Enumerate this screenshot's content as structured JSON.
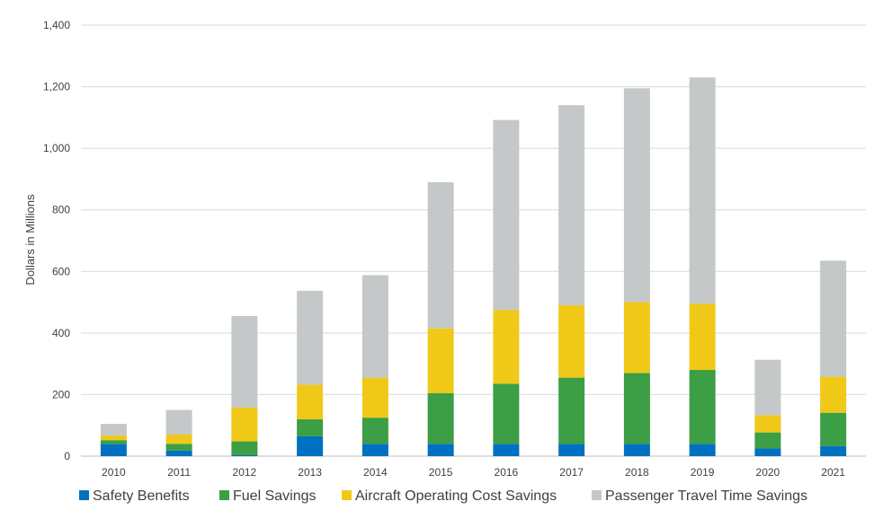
{
  "chart_data": {
    "type": "bar",
    "stacked": true,
    "title": "",
    "xlabel": "",
    "ylabel": "Dollars in Millions",
    "ylim": [
      0,
      1400
    ],
    "yticks": [
      0,
      200,
      400,
      600,
      800,
      1000,
      1200,
      1400
    ],
    "ytick_labels": [
      "0",
      "200",
      "400",
      "600",
      "800",
      "1,000",
      "1,200",
      "1,400"
    ],
    "grid": true,
    "legend_position": "bottom",
    "categories": [
      "2010",
      "2011",
      "2012",
      "2013",
      "2014",
      "2015",
      "2016",
      "2017",
      "2018",
      "2019",
      "2020",
      "2021"
    ],
    "series": [
      {
        "name": "Safety Benefits",
        "color": "#0070C0",
        "values": [
          40,
          18,
          3,
          65,
          40,
          40,
          40,
          40,
          40,
          40,
          25,
          33
        ]
      },
      {
        "name": "Fuel Savings",
        "color": "#3C9E45",
        "values": [
          12,
          22,
          45,
          55,
          85,
          165,
          195,
          215,
          230,
          240,
          52,
          108
        ]
      },
      {
        "name": "Aircraft Operating Cost Savings",
        "color": "#F0C918",
        "values": [
          15,
          30,
          110,
          112,
          130,
          210,
          240,
          235,
          230,
          215,
          56,
          117
        ]
      },
      {
        "name": "Passenger Travel Time Savings",
        "color": "#C5C8C8",
        "values": [
          38,
          80,
          297,
          305,
          333,
          475,
          617,
          650,
          695,
          735,
          180,
          377
        ]
      }
    ]
  }
}
